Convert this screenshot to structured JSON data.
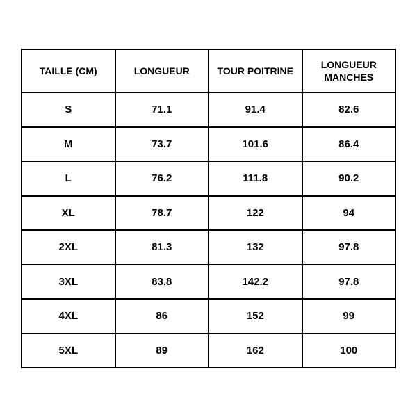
{
  "table": {
    "type": "table",
    "columns": [
      {
        "label": "TAILLE (CM)",
        "width": 0.25,
        "align": "center"
      },
      {
        "label": "LONGUEUR",
        "width": 0.25,
        "align": "center"
      },
      {
        "label": "TOUR POITRINE",
        "width": 0.25,
        "align": "center"
      },
      {
        "label": "LONGUEUR MANCHES",
        "width": 0.25,
        "align": "center"
      }
    ],
    "rows": [
      [
        "S",
        "71.1",
        "91.4",
        "82.6"
      ],
      [
        "M",
        "73.7",
        "101.6",
        "86.4"
      ],
      [
        "L",
        "76.2",
        "111.8",
        "90.2"
      ],
      [
        "XL",
        "78.7",
        "122",
        "94"
      ],
      [
        "2XL",
        "81.3",
        "132",
        "97.8"
      ],
      [
        "3XL",
        "83.8",
        "142.2",
        "97.8"
      ],
      [
        "4XL",
        "86",
        "152",
        "99"
      ],
      [
        "5XL",
        "89",
        "162",
        "100"
      ]
    ],
    "styling": {
      "border_color": "#000000",
      "border_width": 2,
      "background_color": "#ffffff",
      "text_color": "#000000",
      "header_fontsize": 14,
      "cell_fontsize": 15,
      "font_weight": 700,
      "font_family": "Arial, Helvetica, sans-serif"
    }
  }
}
